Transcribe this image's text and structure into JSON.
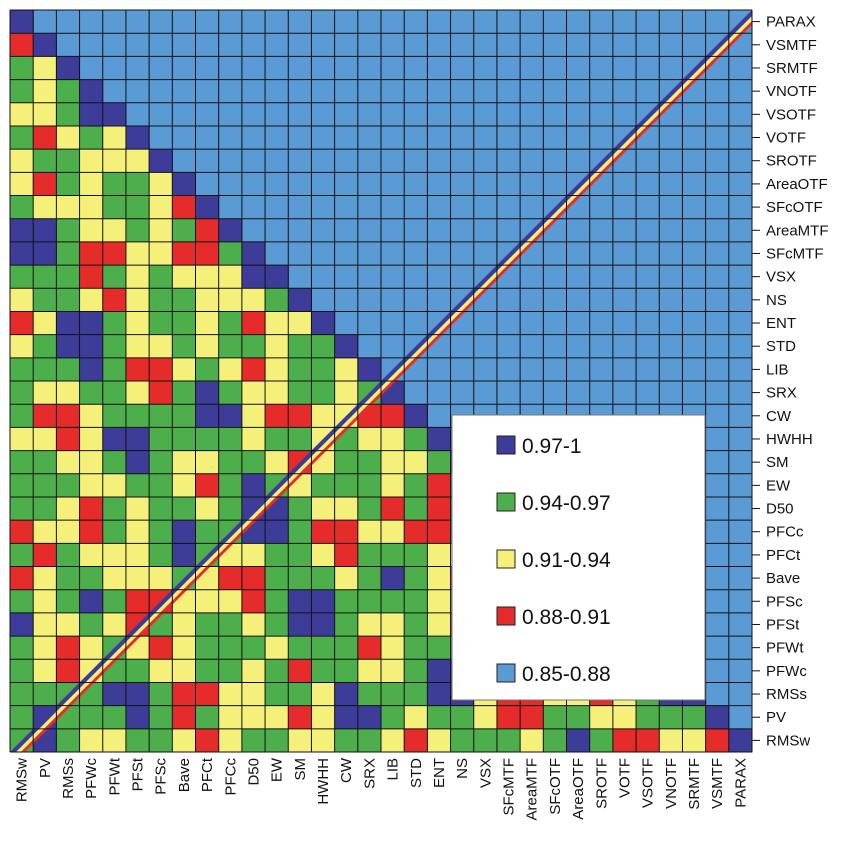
{
  "chart_data": {
    "type": "heatmap",
    "title": "",
    "variables": [
      "RMSw",
      "PV",
      "RMSs",
      "PFWc",
      "PFWt",
      "PFSt",
      "PFSc",
      "Bave",
      "PFCt",
      "PFCc",
      "D50",
      "EW",
      "SM",
      "HWHH",
      "CW",
      "SRX",
      "LIB",
      "STD",
      "ENT",
      "NS",
      "VSX",
      "SFcMTF",
      "AreaMTF",
      "SFcOTF",
      "AreaOTF",
      "SROTF",
      "VOTF",
      "VSOTF",
      "VNOTF",
      "SRMTF",
      "VSMTF",
      "PARAX"
    ],
    "x_order": "left-to-right",
    "y_order": "bottom-to-top",
    "triangle": "upper-left",
    "grid": true,
    "legend_position": "lower-right inside",
    "legend": [
      {
        "label": "0.97-1",
        "color": "#3d3d99",
        "range": [
          0.97,
          1.0
        ]
      },
      {
        "label": "0.94-0.97",
        "color": "#4caf4c",
        "range": [
          0.94,
          0.97
        ]
      },
      {
        "label": "0.91-0.94",
        "color": "#f5f07a",
        "range": [
          0.91,
          0.94
        ]
      },
      {
        "label": "0.88-0.91",
        "color": "#e62b2b",
        "range": [
          0.88,
          0.91
        ]
      },
      {
        "label": "0.85-0.88",
        "color": "#5b9bd5",
        "range": [
          0.85,
          0.88
        ]
      }
    ]
  }
}
